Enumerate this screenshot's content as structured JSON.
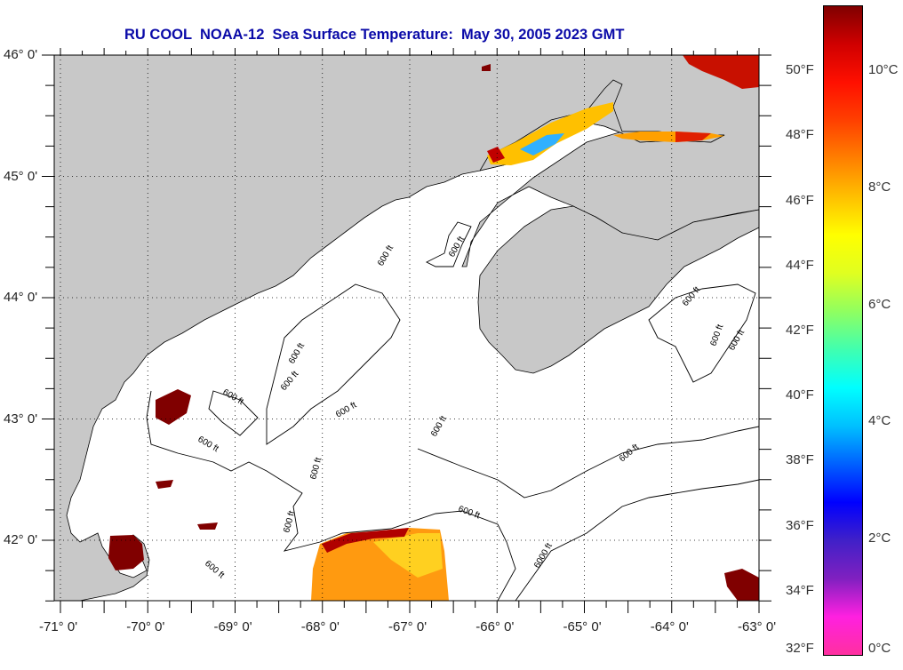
{
  "title": "RU COOL  NOAA-12  Sea Surface Temperature:  May 30, 2005 2023 GMT",
  "map": {
    "lat_range": [
      41.5,
      46.0
    ],
    "lon_range": [
      -71.0,
      -63.0
    ],
    "lat_labels": [
      "46° 0'",
      "45° 0'",
      "44° 0'",
      "43° 0'",
      "42° 0'"
    ],
    "lat_values": [
      46,
      45,
      44,
      43,
      42
    ],
    "lon_labels": [
      "-71° 0'",
      "-70° 0'",
      "-69° 0'",
      "-68° 0'",
      "-67° 0'",
      "-66° 0'",
      "-65° 0'",
      "-64° 0'",
      "-63° 0'"
    ],
    "lon_values": [
      -71,
      -70,
      -69,
      -68,
      -67,
      -66,
      -65,
      -64,
      -63
    ],
    "contour_labels": [
      "600 ft",
      "6000 ft"
    ],
    "colors": {
      "land": "#c8c8c8",
      "ocean_nodata": "#ffffff",
      "grid": "#000000"
    }
  },
  "colorbar": {
    "fahrenheit_labels": [
      "50°F",
      "48°F",
      "46°F",
      "44°F",
      "42°F",
      "40°F",
      "38°F",
      "36°F",
      "34°F",
      "32°F"
    ],
    "fahrenheit_values": [
      50,
      48,
      46,
      44,
      42,
      40,
      38,
      36,
      34,
      32
    ],
    "celsius_labels": [
      "10°C",
      "8°C",
      "6°C",
      "4°C",
      "2°C",
      "0°C"
    ],
    "celsius_values": [
      10,
      8,
      6,
      4,
      2,
      0
    ],
    "range_f": [
      32,
      52
    ],
    "stops": [
      "#ff30a0",
      "#ff20e0",
      "#8020c0",
      "#4020c8",
      "#0000ff",
      "#0060ff",
      "#00c0ff",
      "#00ffff",
      "#40ffb0",
      "#90ff60",
      "#e0ff20",
      "#ffff00",
      "#ffc000",
      "#ff8000",
      "#ff4000",
      "#ff1000",
      "#d00000",
      "#800000"
    ]
  }
}
